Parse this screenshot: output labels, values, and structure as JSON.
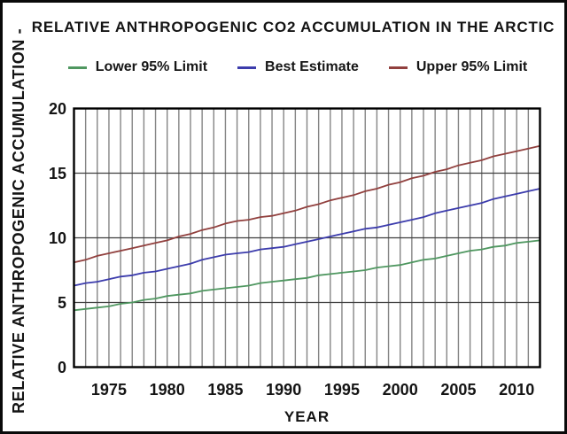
{
  "chart": {
    "title": "RELATIVE ANTHROPOGENIC CO2 ACCUMULATION IN THE ARCTIC",
    "ylabel": "RELATIVE ANTHROPOGENIC ACCUMULATION -",
    "xlabel": "YEAR"
  },
  "colors": {
    "lower_limit_line": "#4f9760",
    "best_estimate_line": "#3c3cac",
    "upper_limit_line": "#91403e",
    "vertical_grid": "#858585",
    "horizontal_grid": "#3f3f3f",
    "plot_border": "#000000",
    "text": "#141414",
    "background": "#ffffff"
  },
  "chart_data": {
    "type": "line",
    "title": "RELATIVE ANTHROPOGENIC CO2 ACCUMULATION IN THE ARCTIC",
    "xlabel": "YEAR",
    "ylabel": "RELATIVE ANTHROPOGENIC ACCUMULATION -",
    "xlim": [
      1972,
      2012
    ],
    "ylim": [
      0,
      20
    ],
    "xticks": [
      1975,
      1980,
      1985,
      1990,
      1995,
      2000,
      2005,
      2010
    ],
    "yticks": [
      0,
      5,
      10,
      15,
      20
    ],
    "grid": "vertical lines every year; horizontal lines every 5 units",
    "legend_position": "top",
    "x": [
      1972,
      1973,
      1974,
      1975,
      1976,
      1977,
      1978,
      1979,
      1980,
      1981,
      1982,
      1983,
      1984,
      1985,
      1986,
      1987,
      1988,
      1989,
      1990,
      1991,
      1992,
      1993,
      1994,
      1995,
      1996,
      1997,
      1998,
      1999,
      2000,
      2001,
      2002,
      2003,
      2004,
      2005,
      2006,
      2007,
      2008,
      2009,
      2010,
      2011,
      2012
    ],
    "series": [
      {
        "name": "Lower 95% Limit",
        "color": "#4f9760",
        "values": [
          4.4,
          4.5,
          4.6,
          4.7,
          4.9,
          5.0,
          5.2,
          5.3,
          5.5,
          5.6,
          5.7,
          5.9,
          6.0,
          6.1,
          6.2,
          6.3,
          6.5,
          6.6,
          6.7,
          6.8,
          6.9,
          7.1,
          7.2,
          7.3,
          7.4,
          7.5,
          7.7,
          7.8,
          7.9,
          8.1,
          8.3,
          8.4,
          8.6,
          8.8,
          9.0,
          9.1,
          9.3,
          9.4,
          9.6,
          9.7,
          9.8
        ]
      },
      {
        "name": "Best Estimate",
        "color": "#3c3cac",
        "values": [
          6.3,
          6.5,
          6.6,
          6.8,
          7.0,
          7.1,
          7.3,
          7.4,
          7.6,
          7.8,
          8.0,
          8.3,
          8.5,
          8.7,
          8.8,
          8.9,
          9.1,
          9.2,
          9.3,
          9.5,
          9.7,
          9.9,
          10.1,
          10.3,
          10.5,
          10.7,
          10.8,
          11.0,
          11.2,
          11.4,
          11.6,
          11.9,
          12.1,
          12.3,
          12.5,
          12.7,
          13.0,
          13.2,
          13.4,
          13.6,
          13.8
        ]
      },
      {
        "name": "Upper 95% Limit",
        "color": "#91403e",
        "values": [
          8.1,
          8.3,
          8.6,
          8.8,
          9.0,
          9.2,
          9.4,
          9.6,
          9.8,
          10.1,
          10.3,
          10.6,
          10.8,
          11.1,
          11.3,
          11.4,
          11.6,
          11.7,
          11.9,
          12.1,
          12.4,
          12.6,
          12.9,
          13.1,
          13.3,
          13.6,
          13.8,
          14.1,
          14.3,
          14.6,
          14.8,
          15.1,
          15.3,
          15.6,
          15.8,
          16.0,
          16.3,
          16.5,
          16.7,
          16.9,
          17.1
        ]
      }
    ]
  }
}
